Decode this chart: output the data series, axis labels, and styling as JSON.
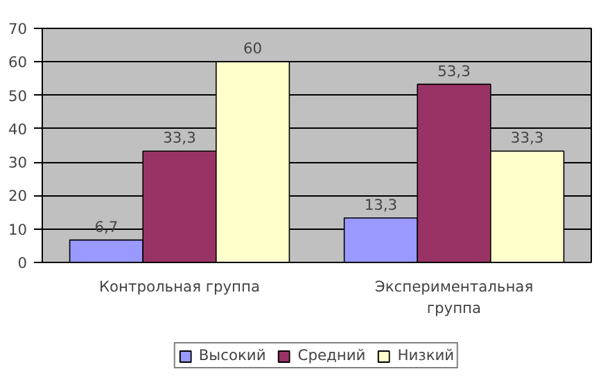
{
  "chart_data": {
    "type": "bar",
    "categories": [
      "Контрольная группа",
      "Экспериментальная группа"
    ],
    "series": [
      {
        "name": "Высокий",
        "color": "#9999ff",
        "values": [
          6.7,
          13.3
        ],
        "value_labels": [
          "6,7",
          "13,3"
        ]
      },
      {
        "name": "Средний",
        "color": "#993366",
        "values": [
          33.3,
          53.3
        ],
        "value_labels": [
          "33,3",
          "53,3"
        ]
      },
      {
        "name": "Низкий",
        "color": "#ffffcc",
        "values": [
          60,
          33.3
        ],
        "value_labels": [
          "60",
          "33,3"
        ]
      }
    ],
    "ylim": [
      0,
      70
    ],
    "yticks": [
      0,
      10,
      20,
      30,
      40,
      50,
      60,
      70
    ],
    "grid": "y",
    "legend": "bottom",
    "data_labels": true
  }
}
